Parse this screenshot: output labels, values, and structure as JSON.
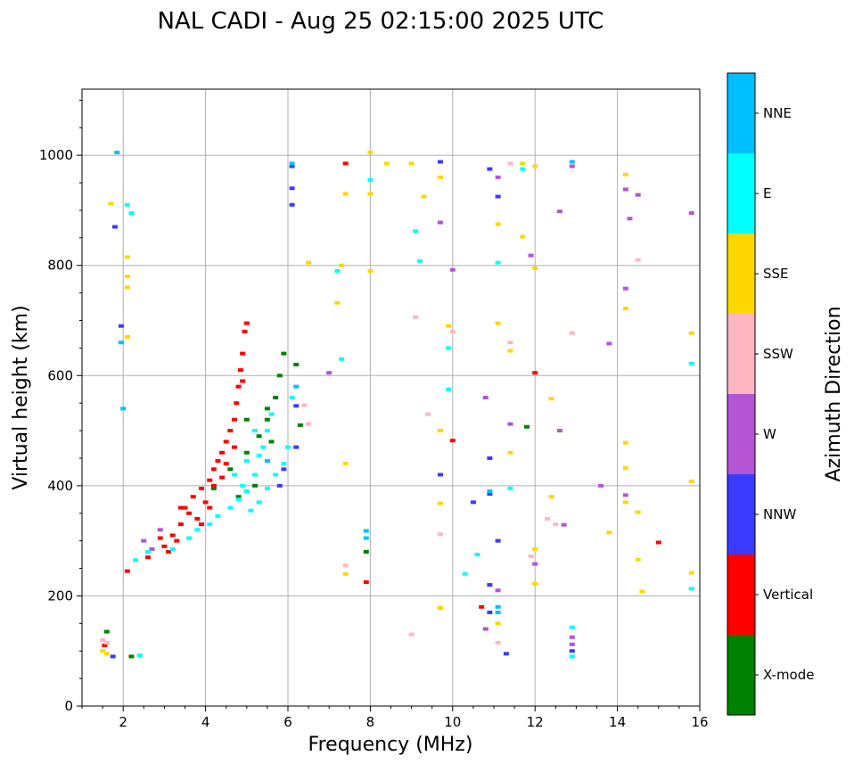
{
  "chart_data": {
    "type": "scatter",
    "title": "NAL CADI - Aug 25 02:15:00 2025 UTC",
    "xlabel": "Frequency (MHz)",
    "ylabel": "Virtual height (km)",
    "xlim": [
      1,
      16
    ],
    "ylim": [
      0,
      1120
    ],
    "xticks": [
      2,
      4,
      6,
      8,
      10,
      12,
      14,
      16
    ],
    "yticks": [
      0,
      200,
      400,
      600,
      800,
      1000
    ],
    "grid": true,
    "colorbar": {
      "label": "Azimuth Direction",
      "categories": [
        {
          "name": "X-mode",
          "color": "#008000"
        },
        {
          "name": "Vertical",
          "color": "#ff0000"
        },
        {
          "name": "NNW",
          "color": "#3b3bff"
        },
        {
          "name": "W",
          "color": "#b455d4"
        },
        {
          "name": "SSW",
          "color": "#ffb6c1"
        },
        {
          "name": "SSE",
          "color": "#ffd700"
        },
        {
          "name": "E",
          "color": "#00ffff"
        },
        {
          "name": "NNE",
          "color": "#00bfff"
        }
      ]
    },
    "series": [
      {
        "name": "X-mode",
        "points": [
          [
            4.2,
            395
          ],
          [
            4.6,
            430
          ],
          [
            5.0,
            460
          ],
          [
            5.3,
            490
          ],
          [
            5.5,
            520
          ],
          [
            5.7,
            560
          ],
          [
            5.8,
            600
          ],
          [
            5.9,
            640
          ],
          [
            6.2,
            620
          ],
          [
            5.6,
            480
          ],
          [
            5.2,
            400
          ],
          [
            4.8,
            380
          ],
          [
            6.3,
            510
          ],
          [
            11.8,
            507
          ],
          [
            7.9,
            280
          ],
          [
            5.5,
            540
          ],
          [
            5.0,
            520
          ],
          [
            1.6,
            135
          ],
          [
            2.2,
            90
          ]
        ]
      },
      {
        "name": "Vertical",
        "points": [
          [
            2.1,
            245
          ],
          [
            2.6,
            270
          ],
          [
            3.0,
            290
          ],
          [
            3.2,
            310
          ],
          [
            3.4,
            330
          ],
          [
            3.5,
            360
          ],
          [
            3.7,
            380
          ],
          [
            3.8,
            340
          ],
          [
            3.9,
            395
          ],
          [
            4.0,
            370
          ],
          [
            4.1,
            410
          ],
          [
            4.2,
            430
          ],
          [
            4.3,
            445
          ],
          [
            4.4,
            460
          ],
          [
            4.5,
            480
          ],
          [
            4.6,
            500
          ],
          [
            4.7,
            520
          ],
          [
            4.75,
            550
          ],
          [
            4.8,
            580
          ],
          [
            4.85,
            610
          ],
          [
            4.9,
            640
          ],
          [
            4.95,
            680
          ],
          [
            5.0,
            695
          ],
          [
            3.3,
            300
          ],
          [
            3.6,
            350
          ],
          [
            3.9,
            330
          ],
          [
            4.2,
            400
          ],
          [
            4.5,
            440
          ],
          [
            4.7,
            470
          ],
          [
            4.9,
            590
          ],
          [
            3.1,
            280
          ],
          [
            2.9,
            305
          ],
          [
            3.4,
            360
          ],
          [
            7.9,
            225
          ],
          [
            10.0,
            482
          ],
          [
            10.7,
            180
          ],
          [
            15.0,
            297
          ],
          [
            7.4,
            985
          ],
          [
            12.0,
            605
          ],
          [
            1.55,
            110
          ],
          [
            4.1,
            360
          ],
          [
            4.4,
            415
          ]
        ]
      },
      {
        "name": "NNW",
        "points": [
          [
            1.8,
            870
          ],
          [
            1.95,
            690
          ],
          [
            6.1,
            980
          ],
          [
            6.1,
            940
          ],
          [
            6.1,
            910
          ],
          [
            6.2,
            545
          ],
          [
            6.2,
            470
          ],
          [
            9.7,
            988
          ],
          [
            9.7,
            420
          ],
          [
            10.9,
            975
          ],
          [
            10.9,
            450
          ],
          [
            10.9,
            220
          ],
          [
            10.9,
            385
          ],
          [
            10.9,
            170
          ],
          [
            11.1,
            300
          ],
          [
            11.1,
            925
          ],
          [
            11.3,
            95
          ],
          [
            12.9,
            100
          ],
          [
            10.5,
            370
          ],
          [
            5.8,
            400
          ],
          [
            5.9,
            430
          ],
          [
            1.75,
            90
          ]
        ]
      },
      {
        "name": "W",
        "points": [
          [
            2.5,
            300
          ],
          [
            2.7,
            285
          ],
          [
            2.9,
            320
          ],
          [
            11.1,
            210
          ],
          [
            11.1,
            960
          ],
          [
            10.0,
            792
          ],
          [
            12.6,
            898
          ],
          [
            12.9,
            980
          ],
          [
            14.2,
            938
          ],
          [
            14.3,
            885
          ],
          [
            14.5,
            928
          ],
          [
            13.8,
            658
          ],
          [
            13.6,
            400
          ],
          [
            14.2,
            383
          ],
          [
            14.2,
            758
          ],
          [
            12.6,
            500
          ],
          [
            12.7,
            329
          ],
          [
            11.4,
            512
          ],
          [
            11.9,
            818
          ],
          [
            10.8,
            560
          ],
          [
            10.8,
            140
          ],
          [
            9.7,
            878
          ],
          [
            7.0,
            605
          ],
          [
            12.9,
            112
          ],
          [
            12.9,
            125
          ],
          [
            15.8,
            895
          ],
          [
            12.0,
            258
          ]
        ]
      },
      {
        "name": "SSW",
        "points": [
          [
            1.5,
            120
          ],
          [
            1.6,
            115
          ],
          [
            9.1,
            706
          ],
          [
            9.4,
            530
          ],
          [
            9.0,
            130
          ],
          [
            10.0,
            680
          ],
          [
            11.1,
            115
          ],
          [
            11.4,
            660
          ],
          [
            12.3,
            340
          ],
          [
            12.5,
            330
          ],
          [
            12.9,
            677
          ],
          [
            6.5,
            512
          ],
          [
            7.4,
            255
          ],
          [
            11.4,
            985
          ],
          [
            14.5,
            810
          ],
          [
            6.4,
            546
          ],
          [
            11.9,
            272
          ],
          [
            9.7,
            312
          ]
        ]
      },
      {
        "name": "SSE",
        "points": [
          [
            1.5,
            100
          ],
          [
            1.6,
            95
          ],
          [
            1.7,
            912
          ],
          [
            2.1,
            780
          ],
          [
            2.1,
            760
          ],
          [
            2.1,
            670
          ],
          [
            2.1,
            815
          ],
          [
            6.5,
            805
          ],
          [
            7.2,
            732
          ],
          [
            7.3,
            800
          ],
          [
            7.4,
            440
          ],
          [
            7.4,
            240
          ],
          [
            7.4,
            930
          ],
          [
            8.0,
            1005
          ],
          [
            8.0,
            930
          ],
          [
            8.0,
            790
          ],
          [
            8.4,
            985
          ],
          [
            9.0,
            985
          ],
          [
            9.3,
            925
          ],
          [
            9.7,
            960
          ],
          [
            9.7,
            500
          ],
          [
            9.7,
            368
          ],
          [
            9.7,
            178
          ],
          [
            9.9,
            690
          ],
          [
            11.1,
            875
          ],
          [
            11.1,
            695
          ],
          [
            11.1,
            150
          ],
          [
            11.4,
            645
          ],
          [
            11.4,
            460
          ],
          [
            11.7,
            985
          ],
          [
            11.7,
            852
          ],
          [
            12.0,
            980
          ],
          [
            12.0,
            795
          ],
          [
            12.0,
            285
          ],
          [
            12.0,
            222
          ],
          [
            12.4,
            558
          ],
          [
            12.4,
            380
          ],
          [
            13.8,
            315
          ],
          [
            14.2,
            965
          ],
          [
            14.2,
            722
          ],
          [
            14.2,
            478
          ],
          [
            14.2,
            432
          ],
          [
            14.2,
            370
          ],
          [
            14.5,
            352
          ],
          [
            14.5,
            266
          ],
          [
            14.6,
            208
          ],
          [
            15.8,
            677
          ],
          [
            15.8,
            408
          ],
          [
            15.8,
            242
          ]
        ]
      },
      {
        "name": "E",
        "points": [
          [
            2.3,
            265
          ],
          [
            2.6,
            280
          ],
          [
            3.2,
            285
          ],
          [
            3.6,
            305
          ],
          [
            3.8,
            320
          ],
          [
            4.1,
            330
          ],
          [
            4.3,
            345
          ],
          [
            4.6,
            360
          ],
          [
            4.8,
            375
          ],
          [
            5.0,
            390
          ],
          [
            5.2,
            420
          ],
          [
            5.3,
            455
          ],
          [
            5.4,
            470
          ],
          [
            5.5,
            500
          ],
          [
            5.6,
            530
          ],
          [
            5.7,
            420
          ],
          [
            5.9,
            440
          ],
          [
            6.0,
            470
          ],
          [
            5.1,
            355
          ],
          [
            5.3,
            370
          ],
          [
            5.5,
            395
          ],
          [
            4.9,
            400
          ],
          [
            4.7,
            420
          ],
          [
            5.2,
            500
          ],
          [
            5.0,
            445
          ],
          [
            2.4,
            92
          ],
          [
            2.1,
            910
          ],
          [
            2.2,
            895
          ],
          [
            7.3,
            630
          ],
          [
            7.2,
            790
          ],
          [
            8.0,
            955
          ],
          [
            9.1,
            862
          ],
          [
            9.2,
            808
          ],
          [
            9.9,
            650
          ],
          [
            9.9,
            575
          ],
          [
            10.3,
            240
          ],
          [
            11.1,
            805
          ],
          [
            11.4,
            395
          ],
          [
            11.7,
            975
          ],
          [
            12.9,
            143
          ],
          [
            12.9,
            90
          ],
          [
            15.8,
            622
          ],
          [
            15.8,
            213
          ],
          [
            10.6,
            275
          ],
          [
            6.1,
            560
          ]
        ]
      },
      {
        "name": "NNE",
        "points": [
          [
            1.85,
            1005
          ],
          [
            1.95,
            660
          ],
          [
            2.0,
            540
          ],
          [
            6.1,
            985
          ],
          [
            7.9,
            305
          ],
          [
            7.9,
            318
          ],
          [
            10.9,
            390
          ],
          [
            11.1,
            170
          ],
          [
            11.1,
            180
          ],
          [
            12.9,
            988
          ],
          [
            6.2,
            580
          ],
          [
            5.5,
            445
          ]
        ]
      }
    ]
  }
}
